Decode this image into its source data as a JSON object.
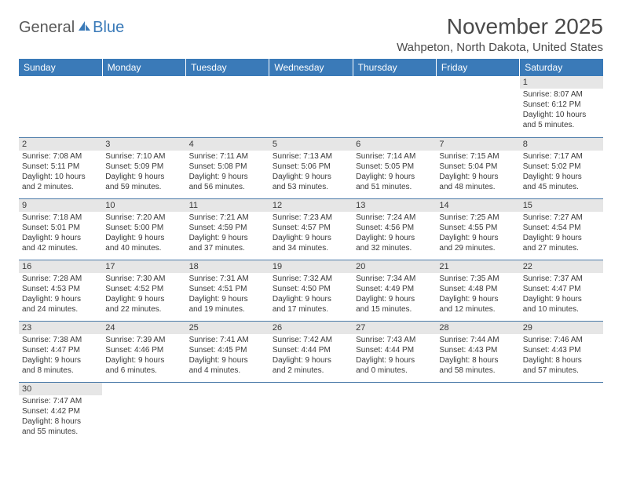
{
  "brand": {
    "part1": "General",
    "part2": "Blue"
  },
  "title": "November 2025",
  "location": "Wahpeton, North Dakota, United States",
  "colors": {
    "header_bg": "#3a7ab8",
    "header_text": "#ffffff",
    "row_border": "#4a7aa8",
    "daynum_bg": "#e6e6e6",
    "text": "#3a3a3a"
  },
  "weekdays": [
    "Sunday",
    "Monday",
    "Tuesday",
    "Wednesday",
    "Thursday",
    "Friday",
    "Saturday"
  ],
  "weeks": [
    [
      {
        "empty": true
      },
      {
        "empty": true
      },
      {
        "empty": true
      },
      {
        "empty": true
      },
      {
        "empty": true
      },
      {
        "empty": true
      },
      {
        "day": "1",
        "sunrise": "Sunrise: 8:07 AM",
        "sunset": "Sunset: 6:12 PM",
        "daylight1": "Daylight: 10 hours",
        "daylight2": "and 5 minutes."
      }
    ],
    [
      {
        "day": "2",
        "sunrise": "Sunrise: 7:08 AM",
        "sunset": "Sunset: 5:11 PM",
        "daylight1": "Daylight: 10 hours",
        "daylight2": "and 2 minutes."
      },
      {
        "day": "3",
        "sunrise": "Sunrise: 7:10 AM",
        "sunset": "Sunset: 5:09 PM",
        "daylight1": "Daylight: 9 hours",
        "daylight2": "and 59 minutes."
      },
      {
        "day": "4",
        "sunrise": "Sunrise: 7:11 AM",
        "sunset": "Sunset: 5:08 PM",
        "daylight1": "Daylight: 9 hours",
        "daylight2": "and 56 minutes."
      },
      {
        "day": "5",
        "sunrise": "Sunrise: 7:13 AM",
        "sunset": "Sunset: 5:06 PM",
        "daylight1": "Daylight: 9 hours",
        "daylight2": "and 53 minutes."
      },
      {
        "day": "6",
        "sunrise": "Sunrise: 7:14 AM",
        "sunset": "Sunset: 5:05 PM",
        "daylight1": "Daylight: 9 hours",
        "daylight2": "and 51 minutes."
      },
      {
        "day": "7",
        "sunrise": "Sunrise: 7:15 AM",
        "sunset": "Sunset: 5:04 PM",
        "daylight1": "Daylight: 9 hours",
        "daylight2": "and 48 minutes."
      },
      {
        "day": "8",
        "sunrise": "Sunrise: 7:17 AM",
        "sunset": "Sunset: 5:02 PM",
        "daylight1": "Daylight: 9 hours",
        "daylight2": "and 45 minutes."
      }
    ],
    [
      {
        "day": "9",
        "sunrise": "Sunrise: 7:18 AM",
        "sunset": "Sunset: 5:01 PM",
        "daylight1": "Daylight: 9 hours",
        "daylight2": "and 42 minutes."
      },
      {
        "day": "10",
        "sunrise": "Sunrise: 7:20 AM",
        "sunset": "Sunset: 5:00 PM",
        "daylight1": "Daylight: 9 hours",
        "daylight2": "and 40 minutes."
      },
      {
        "day": "11",
        "sunrise": "Sunrise: 7:21 AM",
        "sunset": "Sunset: 4:59 PM",
        "daylight1": "Daylight: 9 hours",
        "daylight2": "and 37 minutes."
      },
      {
        "day": "12",
        "sunrise": "Sunrise: 7:23 AM",
        "sunset": "Sunset: 4:57 PM",
        "daylight1": "Daylight: 9 hours",
        "daylight2": "and 34 minutes."
      },
      {
        "day": "13",
        "sunrise": "Sunrise: 7:24 AM",
        "sunset": "Sunset: 4:56 PM",
        "daylight1": "Daylight: 9 hours",
        "daylight2": "and 32 minutes."
      },
      {
        "day": "14",
        "sunrise": "Sunrise: 7:25 AM",
        "sunset": "Sunset: 4:55 PM",
        "daylight1": "Daylight: 9 hours",
        "daylight2": "and 29 minutes."
      },
      {
        "day": "15",
        "sunrise": "Sunrise: 7:27 AM",
        "sunset": "Sunset: 4:54 PM",
        "daylight1": "Daylight: 9 hours",
        "daylight2": "and 27 minutes."
      }
    ],
    [
      {
        "day": "16",
        "sunrise": "Sunrise: 7:28 AM",
        "sunset": "Sunset: 4:53 PM",
        "daylight1": "Daylight: 9 hours",
        "daylight2": "and 24 minutes."
      },
      {
        "day": "17",
        "sunrise": "Sunrise: 7:30 AM",
        "sunset": "Sunset: 4:52 PM",
        "daylight1": "Daylight: 9 hours",
        "daylight2": "and 22 minutes."
      },
      {
        "day": "18",
        "sunrise": "Sunrise: 7:31 AM",
        "sunset": "Sunset: 4:51 PM",
        "daylight1": "Daylight: 9 hours",
        "daylight2": "and 19 minutes."
      },
      {
        "day": "19",
        "sunrise": "Sunrise: 7:32 AM",
        "sunset": "Sunset: 4:50 PM",
        "daylight1": "Daylight: 9 hours",
        "daylight2": "and 17 minutes."
      },
      {
        "day": "20",
        "sunrise": "Sunrise: 7:34 AM",
        "sunset": "Sunset: 4:49 PM",
        "daylight1": "Daylight: 9 hours",
        "daylight2": "and 15 minutes."
      },
      {
        "day": "21",
        "sunrise": "Sunrise: 7:35 AM",
        "sunset": "Sunset: 4:48 PM",
        "daylight1": "Daylight: 9 hours",
        "daylight2": "and 12 minutes."
      },
      {
        "day": "22",
        "sunrise": "Sunrise: 7:37 AM",
        "sunset": "Sunset: 4:47 PM",
        "daylight1": "Daylight: 9 hours",
        "daylight2": "and 10 minutes."
      }
    ],
    [
      {
        "day": "23",
        "sunrise": "Sunrise: 7:38 AM",
        "sunset": "Sunset: 4:47 PM",
        "daylight1": "Daylight: 9 hours",
        "daylight2": "and 8 minutes."
      },
      {
        "day": "24",
        "sunrise": "Sunrise: 7:39 AM",
        "sunset": "Sunset: 4:46 PM",
        "daylight1": "Daylight: 9 hours",
        "daylight2": "and 6 minutes."
      },
      {
        "day": "25",
        "sunrise": "Sunrise: 7:41 AM",
        "sunset": "Sunset: 4:45 PM",
        "daylight1": "Daylight: 9 hours",
        "daylight2": "and 4 minutes."
      },
      {
        "day": "26",
        "sunrise": "Sunrise: 7:42 AM",
        "sunset": "Sunset: 4:44 PM",
        "daylight1": "Daylight: 9 hours",
        "daylight2": "and 2 minutes."
      },
      {
        "day": "27",
        "sunrise": "Sunrise: 7:43 AM",
        "sunset": "Sunset: 4:44 PM",
        "daylight1": "Daylight: 9 hours",
        "daylight2": "and 0 minutes."
      },
      {
        "day": "28",
        "sunrise": "Sunrise: 7:44 AM",
        "sunset": "Sunset: 4:43 PM",
        "daylight1": "Daylight: 8 hours",
        "daylight2": "and 58 minutes."
      },
      {
        "day": "29",
        "sunrise": "Sunrise: 7:46 AM",
        "sunset": "Sunset: 4:43 PM",
        "daylight1": "Daylight: 8 hours",
        "daylight2": "and 57 minutes."
      }
    ],
    [
      {
        "day": "30",
        "sunrise": "Sunrise: 7:47 AM",
        "sunset": "Sunset: 4:42 PM",
        "daylight1": "Daylight: 8 hours",
        "daylight2": "and 55 minutes."
      },
      {
        "empty": true
      },
      {
        "empty": true
      },
      {
        "empty": true
      },
      {
        "empty": true
      },
      {
        "empty": true
      },
      {
        "empty": true
      }
    ]
  ]
}
